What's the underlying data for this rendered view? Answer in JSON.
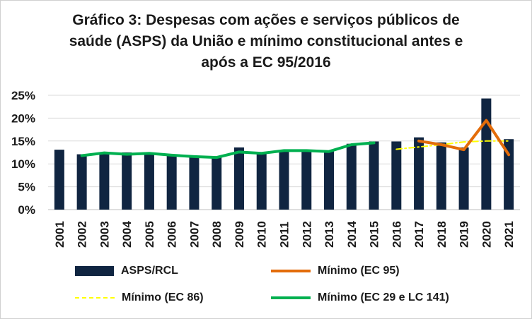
{
  "title_lines": [
    "Gráfico 3: Despesas com ações e serviços públicos de",
    "saúde (ASPS) da União e mínimo constitucional antes e",
    "após a EC 95/2016"
  ],
  "colors": {
    "bar": "#102541",
    "ec95": "#e36c0a",
    "ec86": "#ffff00",
    "ec29": "#00b050",
    "gridline": "#d9d9d9",
    "axis": "#bfbfbf"
  },
  "legend": {
    "asps": "ASPS/RCL",
    "ec95": "Mínimo (EC 95)",
    "ec86": "Mínimo (EC 86)",
    "ec29": "Mínimo (EC 29 e LC 141)"
  },
  "chart_data": {
    "type": "bar",
    "title": "Gráfico 3: Despesas com ações e serviços públicos de saúde (ASPS) da União e mínimo constitucional antes e após a EC 95/2016",
    "xlabel": "",
    "ylabel": "",
    "ylim": [
      0,
      0.25
    ],
    "yticks": [
      0,
      0.05,
      0.1,
      0.15,
      0.2,
      0.25
    ],
    "ytick_labels": [
      "0%",
      "5%",
      "10%",
      "15%",
      "20%",
      "25%"
    ],
    "grid": true,
    "legend_position": "bottom",
    "categories": [
      "2001",
      "2002",
      "2003",
      "2004",
      "2005",
      "2006",
      "2007",
      "2008",
      "2009",
      "2010",
      "2011",
      "2012",
      "2013",
      "2014",
      "2015",
      "2016",
      "2017",
      "2018",
      "2019",
      "2020",
      "2021"
    ],
    "series": [
      {
        "name": "ASPS/RCL",
        "kind": "bar",
        "values": [
          0.131,
          0.121,
          0.123,
          0.125,
          0.123,
          0.119,
          0.115,
          0.115,
          0.136,
          0.124,
          0.127,
          0.128,
          0.128,
          0.144,
          0.149,
          0.149,
          0.158,
          0.147,
          0.136,
          0.243,
          0.154
        ]
      },
      {
        "name": "Mínimo (EC 95)",
        "kind": "line",
        "values": [
          null,
          null,
          null,
          null,
          null,
          null,
          null,
          null,
          null,
          null,
          null,
          null,
          null,
          null,
          null,
          null,
          0.15,
          0.142,
          0.131,
          0.195,
          0.12
        ]
      },
      {
        "name": "Mínimo (EC 86)",
        "kind": "line-dashdot",
        "values": [
          null,
          null,
          null,
          null,
          null,
          null,
          null,
          null,
          null,
          null,
          null,
          null,
          null,
          null,
          null,
          0.132,
          0.137,
          0.142,
          0.148,
          0.15,
          0.15
        ]
      },
      {
        "name": "Mínimo (EC 29 e LC 141)",
        "kind": "line",
        "values": [
          null,
          0.118,
          0.124,
          0.121,
          0.123,
          0.119,
          0.116,
          0.114,
          0.126,
          0.123,
          0.129,
          0.129,
          0.127,
          0.142,
          0.146,
          null,
          null,
          null,
          null,
          null,
          null
        ]
      }
    ]
  }
}
